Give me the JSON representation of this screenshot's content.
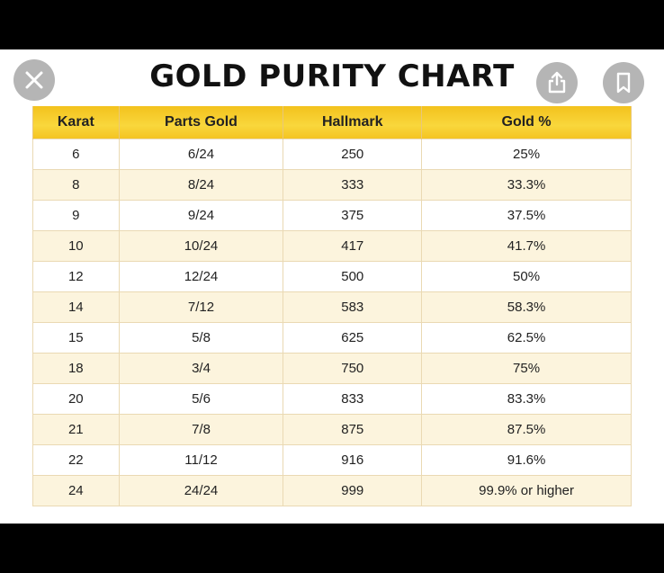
{
  "title": "GOLD PURITY CHART",
  "colors": {
    "header_gold": "#f7cf2d",
    "alt_row": "#fcf4dd",
    "button_gray": "#7a7a7a"
  },
  "controls": {
    "close_icon": "close-icon",
    "share_icon": "share-icon",
    "bookmark_icon": "bookmark-icon"
  },
  "table": {
    "headers": [
      "Karat",
      "Parts Gold",
      "Hallmark",
      "Gold %"
    ],
    "rows": [
      [
        "6",
        "6/24",
        "250",
        "25%"
      ],
      [
        "8",
        "8/24",
        "333",
        "33.3%"
      ],
      [
        "9",
        "9/24",
        "375",
        "37.5%"
      ],
      [
        "10",
        "10/24",
        "417",
        "41.7%"
      ],
      [
        "12",
        "12/24",
        "500",
        "50%"
      ],
      [
        "14",
        "7/12",
        "583",
        "58.3%"
      ],
      [
        "15",
        "5/8",
        "625",
        "62.5%"
      ],
      [
        "18",
        "3/4",
        "750",
        "75%"
      ],
      [
        "20",
        "5/6",
        "833",
        "83.3%"
      ],
      [
        "21",
        "7/8",
        "875",
        "87.5%"
      ],
      [
        "22",
        "11/12",
        "916",
        "91.6%"
      ],
      [
        "24",
        "24/24",
        "999",
        "99.9% or higher"
      ]
    ]
  }
}
